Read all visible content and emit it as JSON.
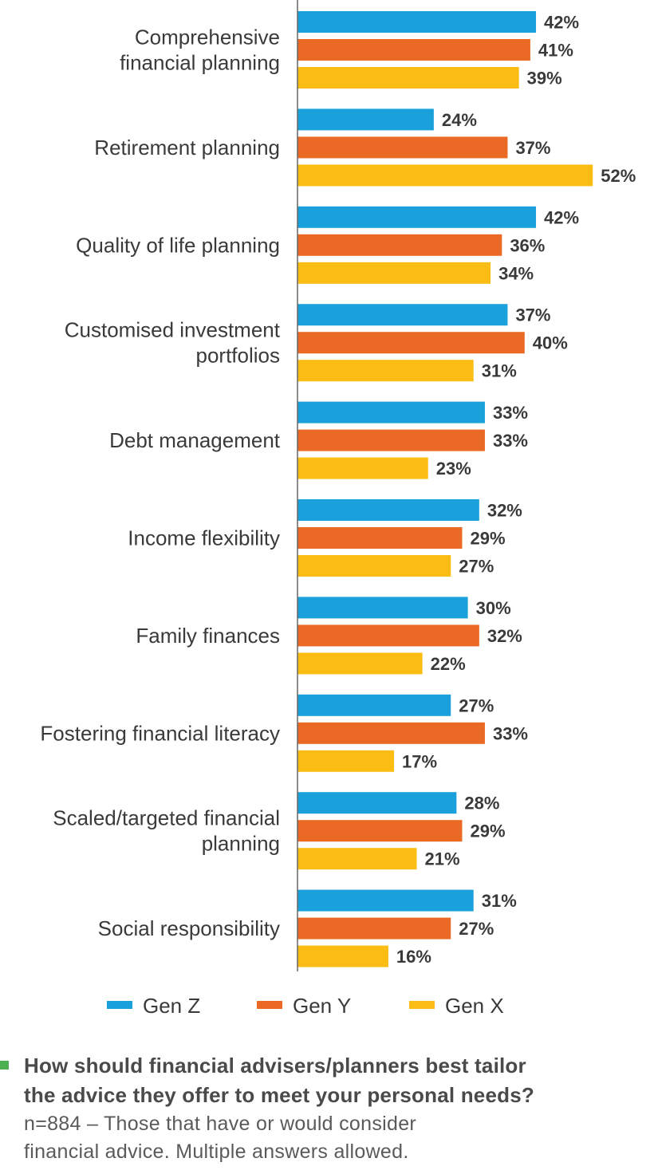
{
  "colors": {
    "gen_z": "#1aa1dc",
    "gen_y": "#ea6a25",
    "gen_x": "#fbbd14",
    "text": "#3a3a3a",
    "axis": "#666666",
    "bullet": "#4caf50"
  },
  "chart_data": {
    "type": "bar",
    "orientation": "horizontal",
    "categories": [
      [
        "Comprehensive",
        "financial planning"
      ],
      [
        "Retirement planning"
      ],
      [
        "Quality of life planning"
      ],
      [
        "Customised investment",
        "portfolios"
      ],
      [
        "Debt management"
      ],
      [
        "Income flexibility"
      ],
      [
        "Family finances"
      ],
      [
        "Fostering financial literacy"
      ],
      [
        "Scaled/targeted financial",
        "planning"
      ],
      [
        "Social responsibility"
      ]
    ],
    "series": [
      {
        "name": "Gen Z",
        "values": [
          42,
          24,
          42,
          37,
          33,
          32,
          30,
          27,
          28,
          31
        ]
      },
      {
        "name": "Gen Y",
        "values": [
          41,
          37,
          36,
          40,
          33,
          29,
          32,
          33,
          29,
          27
        ]
      },
      {
        "name": "Gen X",
        "values": [
          39,
          52,
          34,
          31,
          23,
          27,
          22,
          17,
          21,
          16
        ]
      }
    ],
    "value_suffix": "%",
    "xlim": [
      0,
      52
    ],
    "legend_position": "bottom",
    "grid": false
  },
  "footer": {
    "question_lines": [
      "How should financial advisers/planners best tailor",
      "the advice they offer to meet your personal needs?"
    ],
    "note_lines": [
      "n=884 – Those that have or would consider",
      "financial advice. Multiple answers allowed."
    ]
  }
}
